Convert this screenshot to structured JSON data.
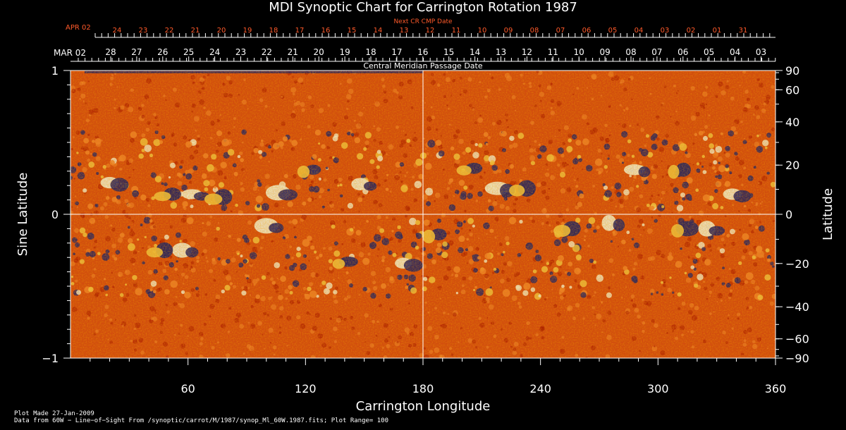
{
  "chart_data": {
    "type": "heatmap",
    "title": "MDI Synoptic Chart for Carrington Rotation 1987",
    "xlabel": "Carrington Longitude",
    "ylabel_left": "Sine Latitude",
    "ylabel_right": "Latitude",
    "xlim": [
      0,
      360
    ],
    "ylim": [
      -1,
      1
    ],
    "x_ticks": [
      60,
      120,
      180,
      240,
      300,
      360
    ],
    "y_ticks_left": [
      {
        "value": 1,
        "label": "1"
      },
      {
        "value": 0,
        "label": "0"
      },
      {
        "value": -1,
        "label": "−1"
      }
    ],
    "lat_ticks": [
      90,
      60,
      40,
      20,
      0,
      -20,
      -40,
      -60,
      -90
    ],
    "crosshair": {
      "longitude": 180,
      "sine_latitude": 0
    },
    "top_axis": {
      "label": "Central Meridian Passage Date",
      "start_label": "MAR 02",
      "dates": [
        "28",
        "27",
        "26",
        "25",
        "24",
        "23",
        "22",
        "21",
        "20",
        "19",
        "18",
        "17",
        "16",
        "15",
        "14",
        "13",
        "12",
        "11",
        "10",
        "09",
        "08",
        "07",
        "06",
        "05",
        "04",
        "03"
      ]
    },
    "next_rotation_axis": {
      "label": "Next CR CMP Date",
      "start_label": "APR 02",
      "dates": [
        "24",
        "23",
        "22",
        "21",
        "20",
        "19",
        "18",
        "17",
        "16",
        "15",
        "14",
        "13",
        "12",
        "11",
        "10",
        "09",
        "08",
        "07",
        "06",
        "05",
        "04",
        "03",
        "02",
        "01",
        "31"
      ]
    },
    "plot_range": 100,
    "colormap": [
      "#1a1a6e",
      "#b01000",
      "#e04a10",
      "#ff8830",
      "#ffd24a",
      "#fffbe0"
    ]
  },
  "footer": {
    "plot_made": "Plot Made 27-Jan-2009",
    "source": "Data from 60W − Line−of−Sight From /synoptic/carrot/M/1987/synop_Ml_60W.1987.fits; Plot Range=  100"
  }
}
